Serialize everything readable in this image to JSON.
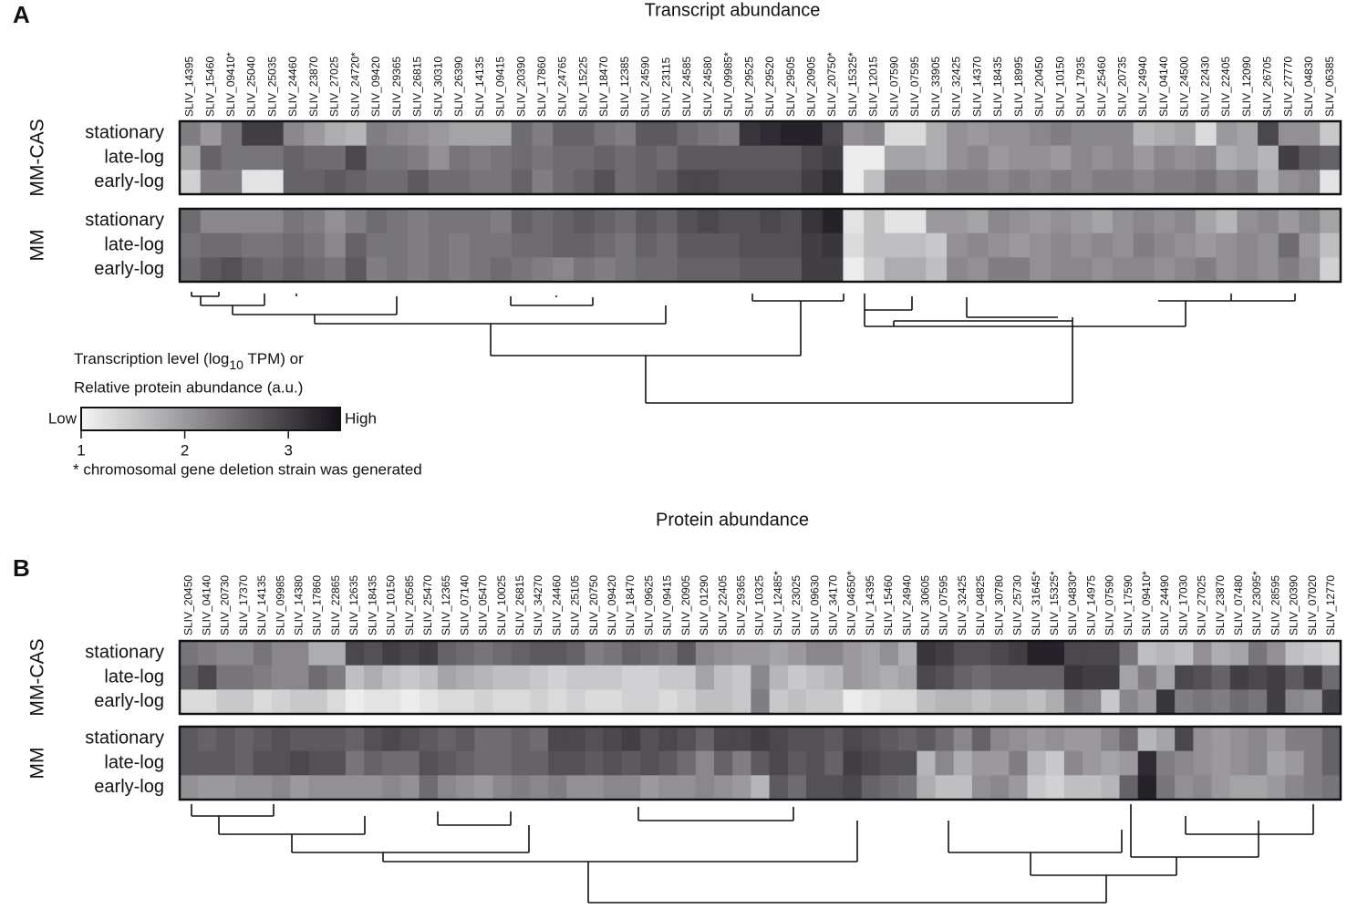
{
  "panels": [
    {
      "letter": "A",
      "title": "Transcript abundance",
      "genes": [
        "SLIV_14395",
        "SLIV_15460",
        "SLIV_09410*",
        "SLIV_25040",
        "SLIV_25035",
        "SLIV_24460",
        "SLIV_23870",
        "SLIV_27025",
        "SLIV_24720*",
        "SLIV_09420",
        "SLIV_29365",
        "SLIV_26815",
        "SLIV_30310",
        "SLIV_26390",
        "SLIV_14135",
        "SLIV_09415",
        "SLIV_20390",
        "SLIV_17860",
        "SLIV_24765",
        "SLIV_15225",
        "SLIV_18470",
        "SLIV_12385",
        "SLIV_24590",
        "SLIV_23115",
        "SLIV_24585",
        "SLIV_24580",
        "SLIV_09985*",
        "SLIV_29525",
        "SLIV_29520",
        "SLIV_29505",
        "SLIV_20905",
        "SLIV_20750*",
        "SLIV_15325*",
        "SLIV_12015",
        "SLIV_07590",
        "SLIV_07595",
        "SLIV_33905",
        "SLIV_32425",
        "SLIV_14370",
        "SLIV_18435",
        "SLIV_18995",
        "SLIV_20450",
        "SLIV_10150",
        "SLIV_17935",
        "SLIV_25460",
        "SLIV_20735",
        "SLIV_24940",
        "SLIV_04140",
        "SLIV_24500",
        "SLIV_22430",
        "SLIV_22405",
        "SLIV_12090",
        "SLIV_26705",
        "SLIV_27770",
        "SLIV_04830",
        "SLIV_06385"
      ],
      "groups": [
        {
          "name": "MM-CAS",
          "rows": [
            {
              "name": "stationary",
              "values": [
                2.3,
                2.0,
                2.4,
                3.0,
                3.0,
                2.2,
                2.0,
                1.8,
                1.7,
                2.3,
                2.2,
                2.1,
                2.0,
                1.9,
                1.9,
                1.9,
                2.5,
                2.3,
                2.6,
                2.6,
                2.4,
                2.3,
                2.7,
                2.7,
                2.5,
                2.4,
                2.3,
                3.1,
                3.2,
                3.3,
                3.3,
                2.9,
                2.1,
                2.2,
                1.3,
                1.3,
                1.8,
                2.1,
                2.0,
                2.1,
                2.1,
                2.2,
                2.3,
                2.2,
                2.2,
                2.2,
                1.7,
                1.8,
                1.9,
                1.3,
                2.0,
                1.9,
                2.9,
                2.1,
                2.1,
                1.5
              ]
            },
            {
              "name": "late-log",
              "values": [
                1.9,
                2.6,
                2.4,
                2.4,
                2.4,
                2.6,
                2.5,
                2.5,
                2.9,
                2.4,
                2.4,
                2.3,
                2.1,
                2.4,
                2.3,
                2.4,
                2.5,
                2.4,
                2.5,
                2.5,
                2.6,
                2.5,
                2.6,
                2.5,
                2.7,
                2.7,
                2.7,
                2.7,
                2.7,
                2.7,
                2.9,
                3.0,
                1.1,
                1.1,
                1.9,
                1.9,
                1.8,
                2.1,
                2.2,
                2.0,
                2.1,
                2.1,
                2.0,
                2.2,
                2.1,
                2.2,
                2.0,
                2.2,
                2.1,
                2.2,
                1.8,
                1.9,
                1.7,
                3.0,
                2.7,
                2.6
              ]
            },
            {
              "name": "early-log",
              "values": [
                1.4,
                2.3,
                2.3,
                1.2,
                1.2,
                2.6,
                2.6,
                2.7,
                2.6,
                2.5,
                2.5,
                2.7,
                2.5,
                2.5,
                2.4,
                2.4,
                2.6,
                2.3,
                2.5,
                2.6,
                2.8,
                2.5,
                2.6,
                2.7,
                2.9,
                2.9,
                2.8,
                2.8,
                2.8,
                2.8,
                3.0,
                3.2,
                1.1,
                1.6,
                2.3,
                2.3,
                2.2,
                2.3,
                2.3,
                2.2,
                2.3,
                2.2,
                2.3,
                2.2,
                2.3,
                2.3,
                2.2,
                2.3,
                2.3,
                2.4,
                2.2,
                2.3,
                1.8,
                2.1,
                2.2,
                1.2
              ]
            }
          ]
        },
        {
          "name": "MM",
          "rows": [
            {
              "name": "stationary",
              "values": [
                2.5,
                2.2,
                2.2,
                2.2,
                2.2,
                2.4,
                2.3,
                2.1,
                2.3,
                2.5,
                2.4,
                2.3,
                2.4,
                2.4,
                2.4,
                2.3,
                2.6,
                2.5,
                2.6,
                2.7,
                2.6,
                2.5,
                2.7,
                2.6,
                2.8,
                2.9,
                2.8,
                2.8,
                2.9,
                2.8,
                3.1,
                3.3,
                1.2,
                1.6,
                1.2,
                1.2,
                2.0,
                2.0,
                1.9,
                2.2,
                2.1,
                2.0,
                2.1,
                2.0,
                1.9,
                2.1,
                2.2,
                2.1,
                2.2,
                1.9,
                1.7,
                2.1,
                2.2,
                2.0,
                2.2,
                1.9
              ]
            },
            {
              "name": "late-log",
              "values": [
                2.4,
                2.5,
                2.5,
                2.4,
                2.4,
                2.5,
                2.4,
                2.2,
                2.6,
                2.4,
                2.4,
                2.3,
                2.4,
                2.3,
                2.4,
                2.4,
                2.5,
                2.5,
                2.6,
                2.6,
                2.5,
                2.4,
                2.6,
                2.5,
                2.7,
                2.7,
                2.7,
                2.8,
                2.8,
                2.8,
                3.0,
                3.1,
                1.3,
                1.6,
                1.6,
                1.6,
                1.5,
                2.1,
                2.2,
                2.1,
                2.0,
                2.1,
                2.2,
                2.1,
                2.2,
                2.1,
                2.3,
                2.2,
                2.1,
                2.0,
                2.1,
                2.2,
                2.1,
                2.5,
                2.0,
                1.6
              ]
            },
            {
              "name": "early-log",
              "values": [
                2.5,
                2.7,
                2.8,
                2.6,
                2.5,
                2.6,
                2.5,
                2.4,
                2.7,
                2.3,
                2.4,
                2.3,
                2.4,
                2.3,
                2.4,
                2.5,
                2.4,
                2.3,
                2.2,
                2.4,
                2.3,
                2.4,
                2.5,
                2.5,
                2.6,
                2.6,
                2.6,
                2.7,
                2.7,
                2.7,
                3.0,
                3.0,
                1.1,
                1.5,
                1.8,
                1.8,
                1.6,
                2.2,
                2.1,
                2.3,
                2.3,
                2.1,
                2.2,
                2.2,
                2.1,
                2.2,
                2.2,
                2.1,
                2.2,
                2.3,
                2.1,
                2.2,
                2.1,
                2.3,
                2.1,
                1.4
              ]
            }
          ]
        }
      ]
    },
    {
      "letter": "B",
      "title": "Protein abundance",
      "genes": [
        "SLIV_20450",
        "SLIV_04140",
        "SLIV_20730",
        "SLIV_17370",
        "SLIV_14135",
        "SLIV_09985",
        "SLIV_14380",
        "SLIV_17860",
        "SLIV_22865",
        "SLIV_12635",
        "SLIV_18435",
        "SLIV_10150",
        "SLIV_20585",
        "SLIV_25470",
        "SLIV_12365",
        "SLIV_07140",
        "SLIV_05470",
        "SLIV_10025",
        "SLIV_26815",
        "SLIV_34270",
        "SLIV_24460",
        "SLIV_25105",
        "SLIV_20750",
        "SLIV_09420",
        "SLIV_18470",
        "SLIV_09625",
        "SLIV_09415",
        "SLIV_20905",
        "SLIV_01290",
        "SLIV_22405",
        "SLIV_29365",
        "SLIV_10325",
        "SLIV_12485*",
        "SLIV_23025",
        "SLIV_09630",
        "SLIV_34170",
        "SLIV_04650*",
        "SLIV_14395",
        "SLIV_15460",
        "SLIV_24940",
        "SLIV_30605",
        "SLIV_07595",
        "SLIV_32425",
        "SLIV_04825",
        "SLIV_30780",
        "SLIV_25730",
        "SLIV_31645*",
        "SLIV_15325*",
        "SLIV_04830*",
        "SLIV_14975",
        "SLIV_07590",
        "SLIV_17590",
        "SLIV_09410*",
        "SLIV_24490",
        "SLIV_17030",
        "SLIV_27025",
        "SLIV_23870",
        "SLIV_07480",
        "SLIV_23095*",
        "SLIV_28595",
        "SLIV_20390",
        "SLIV_07020",
        "SLIV_12770"
      ],
      "groups": [
        {
          "name": "MM-CAS",
          "rows": [
            {
              "name": "stationary",
              "values": [
                2.4,
                2.3,
                2.2,
                2.2,
                2.4,
                2.2,
                2.2,
                1.8,
                1.8,
                2.9,
                2.8,
                3.0,
                2.9,
                3.0,
                2.6,
                2.5,
                2.4,
                2.5,
                2.6,
                2.7,
                2.7,
                2.6,
                2.3,
                2.4,
                2.6,
                2.5,
                2.4,
                2.7,
                2.2,
                2.1,
                2.0,
                2.0,
                1.9,
                2.0,
                2.2,
                2.2,
                2.0,
                1.9,
                2.1,
                1.8,
                3.1,
                3.0,
                2.8,
                2.8,
                2.9,
                3.0,
                3.3,
                3.3,
                2.9,
                2.9,
                2.9,
                2.4,
                1.6,
                1.7,
                1.6,
                2.1,
                1.8,
                1.9,
                2.4,
                2.1,
                1.6,
                1.5,
                1.4
              ]
            },
            {
              "name": "late-log",
              "values": [
                2.6,
                2.9,
                2.4,
                2.4,
                2.3,
                2.2,
                2.2,
                2.5,
                2.3,
                1.6,
                1.8,
                1.6,
                1.5,
                1.6,
                1.9,
                1.8,
                1.7,
                1.6,
                1.6,
                1.5,
                1.4,
                1.5,
                1.5,
                1.5,
                1.4,
                1.4,
                1.5,
                1.5,
                1.9,
                1.6,
                1.5,
                2.2,
                1.7,
                1.5,
                1.6,
                1.7,
                2.0,
                1.9,
                1.8,
                1.9,
                2.9,
                2.8,
                2.6,
                2.5,
                2.6,
                2.6,
                2.6,
                2.6,
                3.1,
                3.0,
                3.0,
                1.9,
                2.3,
                1.9,
                2.9,
                2.8,
                2.6,
                3.0,
                2.9,
                3.0,
                2.7,
                3.0,
                2.5
              ]
            },
            {
              "name": "early-log",
              "values": [
                1.3,
                1.3,
                1.5,
                1.5,
                1.3,
                1.4,
                1.5,
                1.5,
                1.3,
                1.1,
                1.2,
                1.2,
                1.1,
                1.2,
                1.3,
                1.3,
                1.4,
                1.3,
                1.3,
                1.4,
                1.3,
                1.4,
                1.3,
                1.3,
                1.4,
                1.4,
                1.3,
                1.4,
                1.6,
                1.6,
                1.5,
                2.3,
                1.5,
                1.6,
                1.5,
                1.5,
                1.1,
                1.2,
                1.3,
                1.3,
                1.6,
                1.7,
                1.7,
                1.6,
                1.7,
                1.7,
                1.6,
                1.8,
                2.3,
                2.2,
                1.5,
                2.2,
                2.0,
                3.1,
                2.3,
                2.4,
                2.3,
                2.5,
                2.4,
                3.0,
                2.2,
                2.1,
                3.0
              ]
            }
          ]
        },
        {
          "name": "MM",
          "rows": [
            {
              "name": "stationary",
              "values": [
                2.7,
                2.6,
                2.7,
                2.6,
                2.7,
                2.8,
                2.7,
                2.7,
                2.7,
                2.6,
                2.8,
                2.9,
                2.8,
                2.7,
                2.6,
                2.7,
                2.5,
                2.5,
                2.6,
                2.5,
                2.9,
                2.9,
                2.8,
                2.9,
                3.0,
                2.8,
                2.9,
                2.8,
                2.6,
                2.9,
                2.9,
                3.0,
                2.9,
                2.8,
                2.8,
                2.7,
                2.9,
                2.8,
                2.7,
                2.6,
                2.7,
                2.5,
                2.2,
                2.6,
                2.2,
                2.1,
                2.0,
                2.1,
                2.0,
                2.0,
                2.2,
                2.5,
                1.7,
                1.9,
                2.9,
                2.1,
                2.0,
                2.1,
                2.2,
                2.0,
                2.3,
                2.3,
                2.6
              ]
            },
            {
              "name": "late-log",
              "values": [
                2.7,
                2.7,
                2.7,
                2.6,
                2.8,
                2.8,
                2.9,
                2.8,
                2.8,
                2.4,
                2.6,
                2.5,
                2.5,
                2.8,
                2.7,
                2.6,
                2.5,
                2.5,
                2.6,
                2.6,
                2.8,
                2.8,
                2.7,
                2.8,
                2.7,
                2.8,
                2.7,
                2.5,
                2.2,
                2.6,
                2.3,
                2.7,
                2.9,
                2.7,
                2.8,
                2.6,
                3.0,
                2.9,
                2.8,
                2.8,
                1.7,
                2.2,
                1.8,
                2.0,
                2.0,
                2.3,
                1.7,
                1.5,
                2.2,
                2.0,
                1.9,
                2.0,
                3.2,
                2.3,
                2.2,
                2.1,
                2.0,
                2.1,
                2.2,
                1.9,
                2.0,
                2.3,
                2.6
              ]
            },
            {
              "name": "early-log",
              "values": [
                2.1,
                2.0,
                2.0,
                2.1,
                2.1,
                2.2,
                2.0,
                2.1,
                2.1,
                2.1,
                2.1,
                2.2,
                2.1,
                2.5,
                2.2,
                2.1,
                2.0,
                2.2,
                2.3,
                2.2,
                2.3,
                2.1,
                2.1,
                2.2,
                2.2,
                2.0,
                2.1,
                2.1,
                2.2,
                2.1,
                2.0,
                1.7,
                2.7,
                2.5,
                2.8,
                2.8,
                2.9,
                2.6,
                2.5,
                2.4,
                1.8,
                1.6,
                1.6,
                2.1,
                2.2,
                2.0,
                1.5,
                1.4,
                1.6,
                1.6,
                1.7,
                2.6,
                3.3,
                2.4,
                2.1,
                2.2,
                2.0,
                1.9,
                1.9,
                2.0,
                2.2,
                2.3,
                2.4
              ]
            }
          ]
        }
      ]
    }
  ],
  "colorbar": {
    "title_parts": [
      "Transcription level (log",
      "10",
      " TPM) or"
    ],
    "subtitle": "Relative protein abundance (a.u.)",
    "low": "Low",
    "high": "High",
    "xlim": [
      1,
      3.5
    ],
    "xticks": [
      1,
      2,
      3
    ]
  },
  "footnote": "* chromosomal gene deletion strain was generated"
}
